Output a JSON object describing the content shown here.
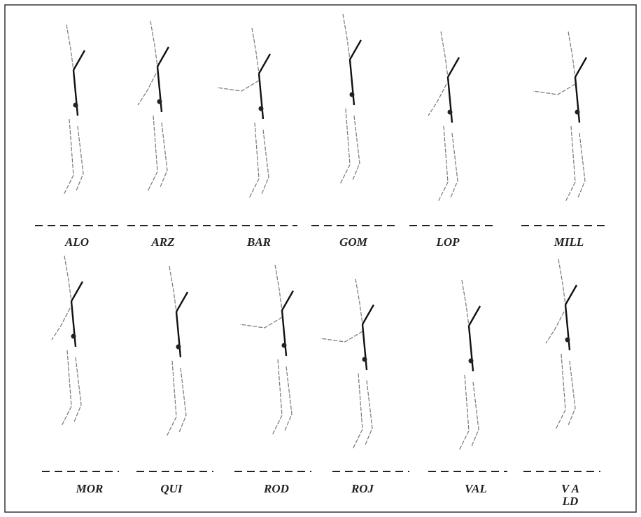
{
  "panels": [
    {
      "label_lines": [
        "ALO"
      ]
    },
    {
      "label_lines": [
        "ARZ"
      ]
    },
    {
      "label_lines": [
        "BAR"
      ]
    },
    {
      "label_lines": [
        "GOM"
      ]
    },
    {
      "label_lines": [
        "LOP"
      ]
    },
    {
      "label_lines": [
        "MILL"
      ]
    },
    {
      "label_lines": [
        "MOR"
      ]
    },
    {
      "label_lines": [
        "QUI"
      ]
    },
    {
      "label_lines": [
        "ROD"
      ]
    },
    {
      "label_lines": [
        "ROJ"
      ]
    },
    {
      "label_lines": [
        "VAL"
      ]
    },
    {
      "label_lines": [
        "V A",
        "LD"
      ]
    }
  ]
}
